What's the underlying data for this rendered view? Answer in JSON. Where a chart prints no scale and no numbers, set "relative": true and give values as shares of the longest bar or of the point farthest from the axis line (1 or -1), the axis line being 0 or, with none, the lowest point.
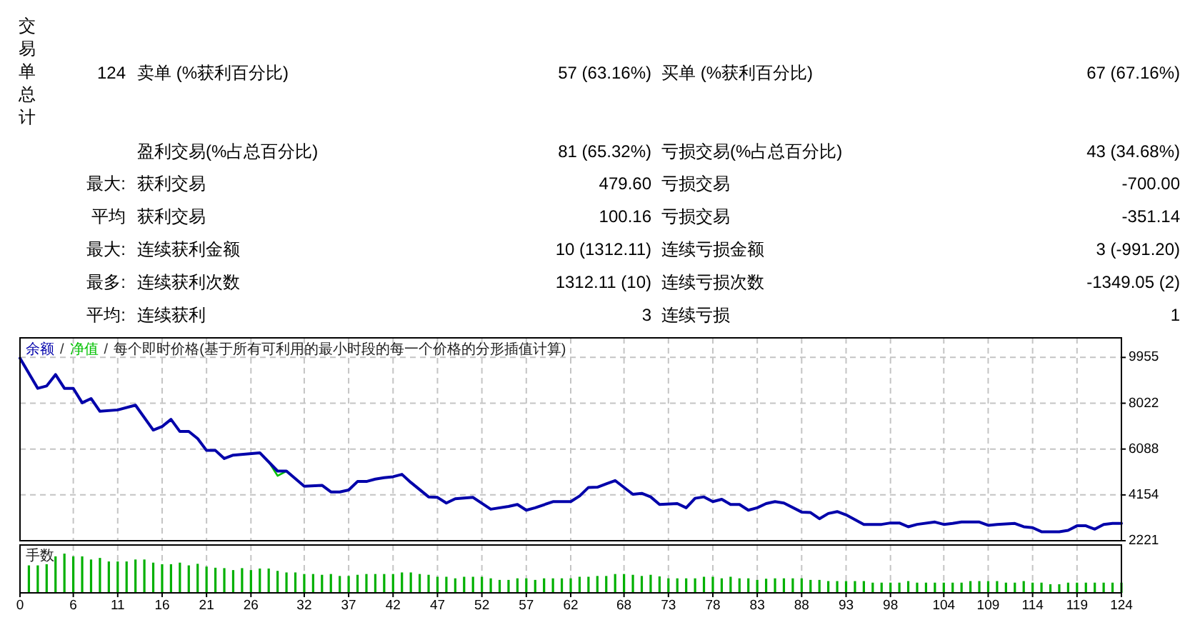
{
  "chart_data": [
    {
      "type": "other",
      "title": "交易单总计",
      "annotations": [
        "124",
        "卖单 (%获利百分比)",
        "57 (63.16%)",
        "买单 (%获利百分比)",
        "67 (67.16%)",
        "盈利交易(%占总百分比)",
        "81 (65.32%)",
        "亏损交易(%占总百分比)",
        "43 (34.68%)",
        "最大:",
        "获利交易",
        "479.60",
        "亏损交易",
        "-700.00",
        "平均",
        "获利交易",
        "100.16",
        "亏损交易",
        "-351.14",
        "最大:",
        "连续获利金额",
        "10 (1312.11)",
        "连续亏损金额",
        "3 (-991.20)",
        "最多:",
        "连续获利次数",
        "1312.11 (10)",
        "连续亏损次数",
        "-1349.05 (2)",
        "平均:",
        "连续获利",
        "3",
        "连续亏损",
        "1"
      ]
    },
    {
      "type": "line",
      "title": "每个即时价格(基于所有可利用的最小时段的每一个价格的分形插值计算)",
      "annotations": [
        "/",
        "/"
      ],
      "legend": "top left",
      "grid": true,
      "tick_labels": "y",
      "xlim": [
        0,
        124
      ],
      "xticks": [
        0,
        6,
        11,
        16,
        21,
        26,
        32,
        37,
        42,
        47,
        52,
        57,
        62,
        68,
        73,
        78,
        83,
        88,
        93,
        98,
        104,
        109,
        114,
        119,
        124
      ],
      "ylim": [
        2221,
        10780
      ],
      "yticks": [
        2221,
        4154,
        6088,
        8022,
        9955
      ],
      "series": [
        {
          "name": "余额",
          "color": "#0000aa",
          "x": [
            0,
            2,
            3,
            4,
            5,
            6,
            7,
            8,
            9,
            11,
            13,
            15,
            16,
            17,
            18,
            19,
            20,
            21,
            22,
            23,
            24,
            27,
            29,
            30,
            32,
            34,
            35,
            36,
            37,
            38,
            39,
            40,
            41,
            42,
            43,
            44,
            46,
            47,
            48,
            49,
            51,
            53,
            55,
            56,
            57,
            58,
            60,
            62,
            63,
            64,
            65,
            66,
            67,
            69,
            70,
            71,
            72,
            74,
            75,
            76,
            77,
            78,
            79,
            80,
            81,
            82,
            83,
            84,
            85,
            86,
            88,
            89,
            90,
            91,
            92,
            93,
            95,
            97,
            98,
            99,
            100,
            101,
            103,
            104,
            105,
            106,
            108,
            109,
            110,
            112,
            113,
            114,
            115,
            117,
            118,
            119,
            120,
            121,
            122,
            123,
            124
          ],
          "values": [
            9920,
            8650,
            8750,
            9230,
            8650,
            8650,
            8040,
            8220,
            7680,
            7740,
            7940,
            6890,
            7040,
            7340,
            6830,
            6830,
            6530,
            6030,
            6030,
            5690,
            5830,
            5930,
            5160,
            5160,
            4520,
            4560,
            4280,
            4280,
            4360,
            4720,
            4720,
            4820,
            4880,
            4920,
            5020,
            4680,
            4070,
            4050,
            3810,
            3990,
            4050,
            3550,
            3670,
            3750,
            3510,
            3610,
            3870,
            3870,
            4110,
            4470,
            4480,
            4620,
            4760,
            4180,
            4220,
            4070,
            3750,
            3790,
            3610,
            4010,
            4070,
            3870,
            3970,
            3750,
            3750,
            3510,
            3610,
            3790,
            3870,
            3810,
            3430,
            3410,
            3150,
            3370,
            3450,
            3310,
            2910,
            2910,
            2970,
            2970,
            2810,
            2910,
            3010,
            2910,
            2950,
            3010,
            3010,
            2870,
            2910,
            2950,
            2810,
            2770,
            2600,
            2600,
            2660,
            2850,
            2850,
            2710,
            2910,
            2950,
            2950
          ]
        },
        {
          "name": "净值",
          "color": "#00c000",
          "x": [
            28,
            29,
            30
          ],
          "values": [
            5550,
            4960,
            5160
          ]
        }
      ]
    },
    {
      "type": "bar",
      "title": "手数",
      "relative": true,
      "grid": "x",
      "tick_labels": "x",
      "color": "#00b000",
      "xlim": [
        0,
        124
      ],
      "xticks": [
        0,
        6,
        11,
        16,
        21,
        26,
        32,
        37,
        42,
        47,
        52,
        57,
        62,
        68,
        73,
        78,
        83,
        88,
        93,
        98,
        104,
        109,
        114,
        119,
        124
      ],
      "x": [
        1,
        2,
        3,
        4,
        5,
        6,
        7,
        8,
        9,
        10,
        11,
        12,
        13,
        14,
        15,
        16,
        17,
        18,
        19,
        20,
        21,
        22,
        23,
        24,
        25,
        26,
        27,
        28,
        29,
        30,
        31,
        32,
        33,
        34,
        35,
        36,
        37,
        38,
        39,
        40,
        41,
        42,
        43,
        44,
        45,
        46,
        47,
        48,
        49,
        50,
        51,
        52,
        53,
        54,
        55,
        56,
        57,
        58,
        59,
        60,
        61,
        62,
        63,
        64,
        65,
        66,
        67,
        68,
        69,
        70,
        71,
        72,
        73,
        74,
        75,
        76,
        77,
        78,
        79,
        80,
        81,
        82,
        83,
        84,
        85,
        86,
        87,
        88,
        89,
        90,
        91,
        92,
        93,
        94,
        95,
        96,
        97,
        98,
        99,
        100,
        101,
        102,
        103,
        104,
        105,
        106,
        107,
        108,
        109,
        110,
        111,
        112,
        113,
        114,
        115,
        116,
        117,
        118,
        119,
        120,
        121,
        122,
        123,
        124
      ],
      "values": [
        0.7,
        0.7,
        0.73,
        0.93,
        1,
        0.93,
        0.93,
        0.85,
        0.89,
        0.8,
        0.8,
        0.8,
        0.85,
        0.85,
        0.77,
        0.73,
        0.73,
        0.77,
        0.7,
        0.74,
        0.67,
        0.64,
        0.63,
        0.58,
        0.63,
        0.58,
        0.62,
        0.62,
        0.56,
        0.52,
        0.52,
        0.48,
        0.48,
        0.46,
        0.48,
        0.43,
        0.43,
        0.46,
        0.48,
        0.48,
        0.48,
        0.48,
        0.52,
        0.52,
        0.48,
        0.46,
        0.41,
        0.41,
        0.37,
        0.41,
        0.41,
        0.41,
        0.37,
        0.33,
        0.33,
        0.37,
        0.37,
        0.33,
        0.37,
        0.37,
        0.37,
        0.37,
        0.41,
        0.41,
        0.43,
        0.43,
        0.48,
        0.48,
        0.46,
        0.43,
        0.46,
        0.42,
        0.37,
        0.37,
        0.37,
        0.37,
        0.41,
        0.41,
        0.37,
        0.41,
        0.37,
        0.37,
        0.33,
        0.36,
        0.37,
        0.37,
        0.37,
        0.37,
        0.33,
        0.33,
        0.3,
        0.3,
        0.3,
        0.3,
        0.3,
        0.26,
        0.26,
        0.26,
        0.26,
        0.3,
        0.26,
        0.26,
        0.26,
        0.26,
        0.26,
        0.26,
        0.3,
        0.3,
        0.3,
        0.3,
        0.26,
        0.26,
        0.3,
        0.26,
        0.26,
        0.22,
        0.22,
        0.26,
        0.26,
        0.26,
        0.26,
        0.26,
        0.26,
        0.26
      ]
    }
  ]
}
